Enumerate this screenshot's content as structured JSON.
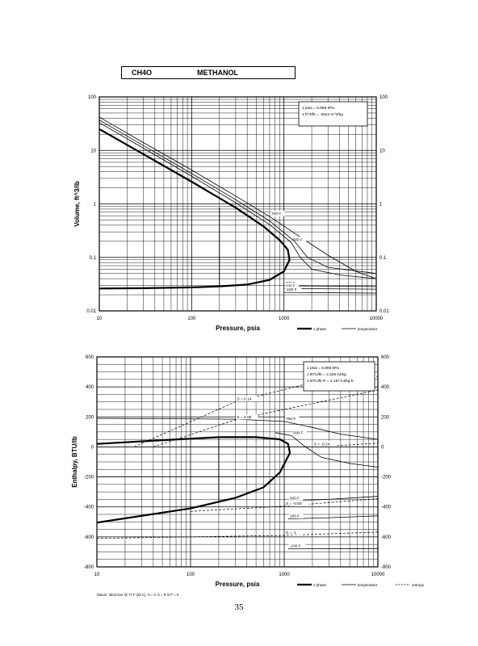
{
  "header": {
    "formula": "CH4O",
    "name": "METHANOL"
  },
  "page_number": "35",
  "chart_data": [
    {
      "type": "line",
      "title": "",
      "xlabel": "Pressure,  psia",
      "ylabel": "Volume,  ft^3/lb",
      "xscale": "log",
      "yscale": "log",
      "xlim": [
        10,
        10000
      ],
      "ylim": [
        0.01,
        100
      ],
      "x_ticks": [
        "10",
        "100",
        "1000",
        "10000"
      ],
      "y_ticks": [
        "0.01",
        "0.1",
        "1",
        "10",
        "100"
      ],
      "grid": true,
      "conversion_box": [
        "1 psia = 6.895 kPa",
        "1 ft^3/lb = .0624 m^3/kg"
      ],
      "legend": [
        "2 phase",
        "temperature"
      ],
      "series": [
        {
          "kind": "two-phase",
          "points": [
            [
              10,
              0.0262
            ],
            [
              30,
              0.0266
            ],
            [
              100,
              0.0275
            ],
            [
              200,
              0.0288
            ],
            [
              400,
              0.031
            ],
            [
              700,
              0.038
            ],
            [
              1000,
              0.055
            ],
            [
              1150,
              0.09
            ],
            [
              1100,
              0.14
            ],
            [
              900,
              0.21
            ],
            [
              600,
              0.38
            ],
            [
              300,
              0.85
            ],
            [
              100,
              2.6
            ],
            [
              30,
              8.5
            ],
            [
              10,
              25
            ]
          ]
        },
        {
          "kind": "isotherm",
          "label": "700 F",
          "points": [
            [
              10,
              42
            ],
            [
              30,
              14
            ],
            [
              100,
              4.3
            ],
            [
              300,
              1.4
            ],
            [
              700,
              0.58
            ],
            [
              1500,
              0.24
            ],
            [
              3000,
              0.11
            ],
            [
              6000,
              0.055
            ],
            [
              10000,
              0.04
            ]
          ]
        },
        {
          "kind": "isotherm",
          "label": "500 F",
          "points": [
            [
              10,
              33
            ],
            [
              30,
              11
            ],
            [
              100,
              3.3
            ],
            [
              300,
              1.05
            ],
            [
              700,
              0.41
            ],
            [
              1200,
              0.19
            ],
            [
              1500,
              0.1
            ],
            [
              2000,
              0.06
            ],
            [
              4000,
              0.047
            ],
            [
              10000,
              0.04
            ]
          ]
        },
        {
          "kind": "isotherm",
          "label": "",
          "points": [
            [
              10,
              37
            ],
            [
              30,
              12.3
            ],
            [
              100,
              3.7
            ],
            [
              300,
              1.2
            ],
            [
              700,
              0.48
            ],
            [
              1300,
              0.2
            ],
            [
              1800,
              0.1
            ],
            [
              3000,
              0.065
            ],
            [
              10000,
              0.05
            ]
          ]
        },
        {
          "kind": "isotherm",
          "label": "300 F",
          "points": [
            [
              1000,
              0.0295
            ],
            [
              10000,
              0.0285
            ]
          ]
        },
        {
          "kind": "isotherm",
          "label": "100 F",
          "points": [
            [
              1000,
              0.0262
            ],
            [
              10000,
              0.0255
            ]
          ]
        },
        {
          "kind": "isotherm",
          "label": "-100 F",
          "points": [
            [
              1000,
              0.0222
            ],
            [
              10000,
              0.0215
            ]
          ]
        }
      ]
    },
    {
      "type": "line",
      "title": "",
      "xlabel": "Pressure,  psia",
      "ylabel": "Enthalpy,  BTU/lb",
      "xscale": "log",
      "xlim": [
        10,
        10000
      ],
      "ylim": [
        -800,
        600
      ],
      "x_ticks": [
        "10",
        "100",
        "1000",
        "10000"
      ],
      "y_ticks": [
        "-800",
        "-600",
        "-400",
        "-200",
        "0",
        "200",
        "400",
        "600"
      ],
      "grid": true,
      "conversion_box": [
        "1 psia = 6.895 kPa",
        "1 BTU/lb = 2.326 kJ/kg",
        "1 BTU/lb R = 4.187 kJ/kg K"
      ],
      "legend": [
        "2 phase",
        "temperature",
        "entropy"
      ],
      "footnote": "Datum: Ideal Gas @ 77 F (25 C),  H = 0,  S = R ln P = 0",
      "series": [
        {
          "kind": "two-phase",
          "points": [
            [
              10,
              -505
            ],
            [
              100,
              -410
            ],
            [
              300,
              -340
            ],
            [
              600,
              -270
            ],
            [
              900,
              -170
            ],
            [
              1150,
              -40
            ],
            [
              1100,
              20
            ],
            [
              900,
              50
            ],
            [
              500,
              65
            ],
            [
              200,
              65
            ],
            [
              50,
              45
            ],
            [
              10,
              20
            ]
          ]
        },
        {
          "kind": "isotherm",
          "label": "700 F",
          "points": [
            [
              10,
              190
            ],
            [
              300,
              185
            ],
            [
              1000,
              170
            ],
            [
              2000,
              130
            ],
            [
              4000,
              85
            ],
            [
              10000,
              50
            ]
          ]
        },
        {
          "kind": "isotherm",
          "label": "500 F",
          "points": [
            [
              800,
              95
            ],
            [
              1200,
              75
            ],
            [
              1600,
              10
            ],
            [
              2500,
              -70
            ],
            [
              5000,
              -110
            ],
            [
              10000,
              -135
            ]
          ]
        },
        {
          "kind": "isotherm",
          "label": "300 F",
          "points": [
            [
              1100,
              -360
            ],
            [
              3000,
              -350
            ],
            [
              10000,
              -330
            ]
          ]
        },
        {
          "kind": "isotherm",
          "label": "100 F",
          "points": [
            [
              1100,
              -480
            ],
            [
              3000,
              -472
            ],
            [
              10000,
              -460
            ]
          ]
        },
        {
          "kind": "isotherm",
          "label": "-100 F",
          "points": [
            [
              1100,
              -680
            ],
            [
              10000,
              -678
            ]
          ]
        },
        {
          "kind": "entropy",
          "label": "S = 0.14",
          "points": [
            [
              25,
              0
            ],
            [
              300,
              300
            ],
            [
              2000,
              430
            ],
            [
              10000,
              470
            ]
          ]
        },
        {
          "kind": "entropy",
          "label": "S = 0.00",
          "points": [
            [
              40,
              0
            ],
            [
              300,
              180
            ],
            [
              1000,
              250
            ],
            [
              10000,
              380
            ]
          ]
        },
        {
          "kind": "entropy",
          "label": "S = -0.24",
          "points": [
            [
              2000,
              0
            ],
            [
              4000,
              10
            ],
            [
              10000,
              25
            ]
          ]
        },
        {
          "kind": "entropy",
          "label": "S = -0.60",
          "points": [
            [
              100,
              -430
            ],
            [
              1000,
              -395
            ],
            [
              10000,
              -345
            ]
          ]
        },
        {
          "kind": "entropy",
          "label": "S = -1",
          "points": [
            [
              10,
              -610
            ],
            [
              1000,
              -590
            ],
            [
              10000,
              -568
            ]
          ]
        }
      ]
    }
  ]
}
